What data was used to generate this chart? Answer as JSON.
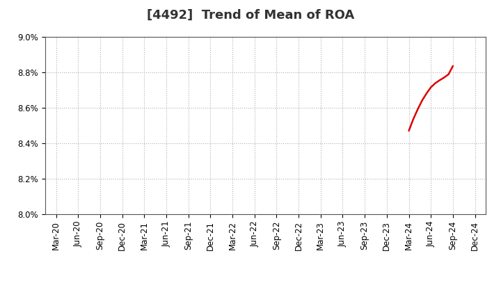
{
  "title": "[4492]  Trend of Mean of ROA",
  "ylim": [
    0.08,
    0.09
  ],
  "yticks": [
    0.08,
    0.082,
    0.084,
    0.086,
    0.088,
    0.09
  ],
  "ytick_labels": [
    "8.0%",
    "8.2%",
    "8.4%",
    "8.6%",
    "8.8%",
    "9.0%"
  ],
  "x_labels": [
    "Mar-20",
    "Jun-20",
    "Sep-20",
    "Dec-20",
    "Mar-21",
    "Jun-21",
    "Sep-21",
    "Dec-21",
    "Mar-22",
    "Jun-22",
    "Sep-22",
    "Dec-22",
    "Mar-23",
    "Jun-23",
    "Sep-23",
    "Dec-23",
    "Mar-24",
    "Jun-24",
    "Sep-24",
    "Dec-24"
  ],
  "series_3yr_x": [
    16.0,
    16.2,
    16.4,
    16.6,
    16.8,
    17.0,
    17.2,
    17.4,
    17.6,
    17.8,
    18.0
  ],
  "series_3yr_y": [
    0.0847,
    0.08535,
    0.0859,
    0.0864,
    0.0868,
    0.08715,
    0.08738,
    0.08755,
    0.0877,
    0.08788,
    0.08835
  ],
  "line_color_3yr": "#dd0000",
  "line_color_5yr": "#0000cd",
  "line_color_7yr": "#00bcd4",
  "line_color_10yr": "#008000",
  "background_color": "#ffffff",
  "plot_bg_color": "#ffffff",
  "grid_color": "#b0b0b0",
  "title_fontsize": 13,
  "tick_fontsize": 8.5
}
